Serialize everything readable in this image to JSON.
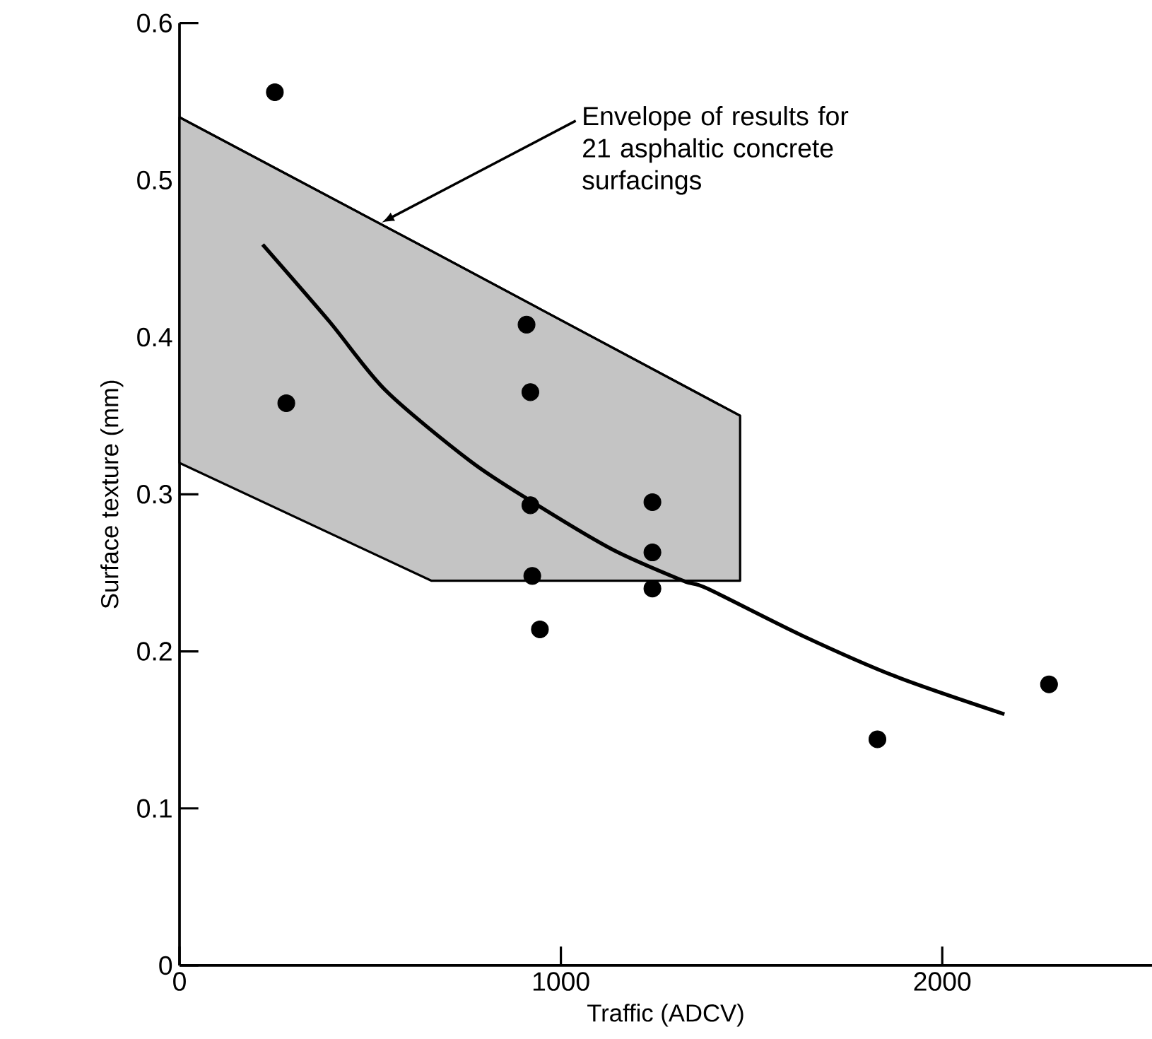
{
  "chart_data": {
    "type": "scatter",
    "xlabel": "Traffic (ADCV)",
    "ylabel": "Surface texture (mm)",
    "xlim": [
      0,
      2550
    ],
    "ylim": [
      0,
      0.6
    ],
    "xticks": [
      0,
      1000,
      2000
    ],
    "yticks": [
      0,
      0.1,
      0.2,
      0.3,
      0.4,
      0.5,
      0.6
    ],
    "grid": false,
    "annotations": [
      {
        "text": "Envelope of results for 21 asphaltic concrete surfacings",
        "x": 530,
        "y": 0.473
      }
    ],
    "series": [
      {
        "type": "line",
        "marker": "none",
        "color": "#000000",
        "x": [
          0,
          660,
          1470
        ],
        "values": [
          0.54,
          0.455,
          0.35
        ],
        "lower": [
          0.32,
          0.245,
          0.245
        ],
        "upper": [
          0.54,
          0.455,
          0.35
        ]
      },
      {
        "type": "line",
        "marker": "none",
        "color": "#000000",
        "x": [
          218,
          393,
          541,
          763,
          926,
          1134,
          1320,
          1384,
          1633,
          1878,
          2163
        ],
        "values": [
          0.459,
          0.41,
          0.366,
          0.321,
          0.295,
          0.265,
          0.245,
          0.24,
          0.21,
          0.184,
          0.16
        ]
      },
      {
        "marker": "circle",
        "color": "#000000",
        "x": [
          250,
          280,
          910,
          920,
          920,
          925,
          945,
          1240,
          1240,
          1240,
          1830,
          2280
        ],
        "values": [
          0.556,
          0.358,
          0.408,
          0.365,
          0.293,
          0.248,
          0.214,
          0.295,
          0.263,
          0.24,
          0.144,
          0.179
        ]
      }
    ]
  }
}
